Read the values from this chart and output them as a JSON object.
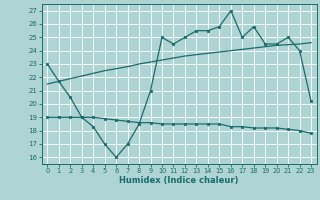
{
  "xlabel": "Humidex (Indice chaleur)",
  "xlim": [
    -0.5,
    23.5
  ],
  "ylim": [
    15.5,
    27.5
  ],
  "yticks": [
    16,
    17,
    18,
    19,
    20,
    21,
    22,
    23,
    24,
    25,
    26,
    27
  ],
  "xticks": [
    0,
    1,
    2,
    3,
    4,
    5,
    6,
    7,
    8,
    9,
    10,
    11,
    12,
    13,
    14,
    15,
    16,
    17,
    18,
    19,
    20,
    21,
    22,
    23
  ],
  "bg_color": "#aed4d4",
  "grid_color": "#ffffff",
  "line_color": "#1a6b6b",
  "curve1_x": [
    0,
    1,
    2,
    3,
    4,
    5,
    6,
    7,
    8,
    9,
    10,
    11,
    12,
    13,
    14,
    15,
    16,
    17,
    18,
    19,
    20,
    21,
    22,
    23
  ],
  "curve1_y": [
    23.0,
    21.7,
    20.5,
    19.0,
    18.3,
    17.0,
    16.0,
    17.0,
    18.5,
    21.0,
    25.0,
    24.5,
    25.0,
    25.5,
    25.5,
    25.8,
    27.0,
    25.0,
    25.8,
    24.5,
    24.5,
    25.0,
    24.0,
    20.2
  ],
  "curve2_x": [
    0,
    1,
    2,
    3,
    4,
    5,
    6,
    7,
    8,
    9,
    10,
    11,
    12,
    13,
    14,
    15,
    16,
    17,
    18,
    19,
    20,
    21,
    22,
    23
  ],
  "curve2_y": [
    21.5,
    21.7,
    21.9,
    22.1,
    22.3,
    22.5,
    22.65,
    22.8,
    23.0,
    23.15,
    23.3,
    23.45,
    23.6,
    23.7,
    23.8,
    23.9,
    24.0,
    24.1,
    24.2,
    24.3,
    24.4,
    24.45,
    24.5,
    24.6
  ],
  "curve3_x": [
    0,
    1,
    2,
    3,
    4,
    5,
    6,
    7,
    8,
    9,
    10,
    11,
    12,
    13,
    14,
    15,
    16,
    17,
    18,
    19,
    20,
    21,
    22,
    23
  ],
  "curve3_y": [
    19.0,
    19.0,
    19.0,
    19.0,
    19.0,
    18.9,
    18.8,
    18.7,
    18.6,
    18.6,
    18.5,
    18.5,
    18.5,
    18.5,
    18.5,
    18.5,
    18.3,
    18.3,
    18.2,
    18.2,
    18.2,
    18.1,
    18.0,
    17.8
  ]
}
